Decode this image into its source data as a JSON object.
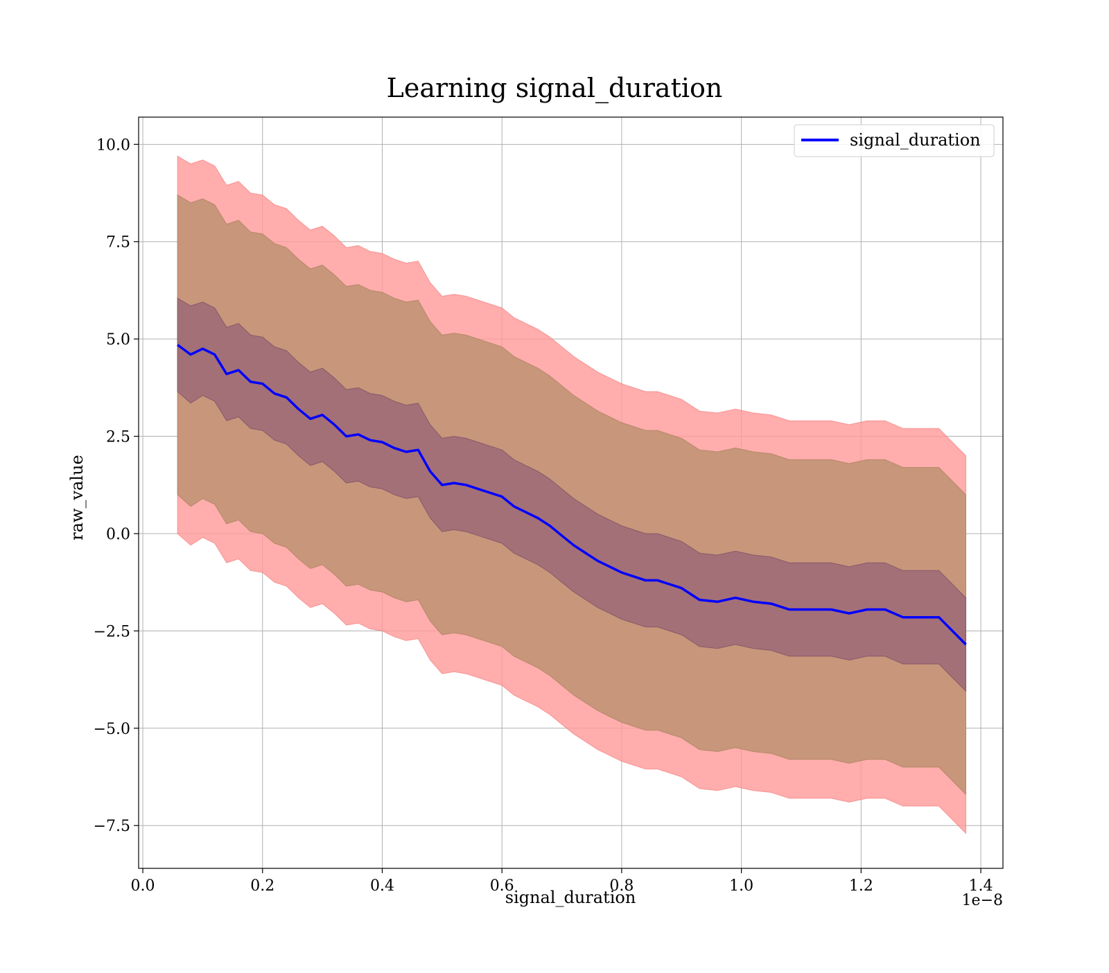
{
  "chart_data": {
    "type": "line",
    "title": "Learning signal_duration",
    "xlabel": "signal_duration",
    "ylabel": "raw_value",
    "x_offset_label": "1e−8",
    "xlim": [
      -0.007,
      1.437
    ],
    "ylim": [
      -8.6,
      10.7
    ],
    "x_ticks": [
      0.0,
      0.2,
      0.4,
      0.6,
      0.8,
      1.0,
      1.2,
      1.4
    ],
    "x_tick_labels": [
      "0.0",
      "0.2",
      "0.4",
      "0.6",
      "0.8",
      "1.0",
      "1.2",
      "1.4"
    ],
    "y_ticks": [
      -7.5,
      -5.0,
      -2.5,
      0.0,
      2.5,
      5.0,
      7.5,
      10.0
    ],
    "y_tick_labels": [
      "−7.5",
      "−5.0",
      "−2.5",
      "0.0",
      "2.5",
      "5.0",
      "7.5",
      "10.0"
    ],
    "grid": true,
    "legend_position": "top-right",
    "colors": {
      "line": "#0000ff",
      "outer_band": "#ff9999",
      "middle_band": "#c8967a",
      "inner_band": "#a37078",
      "grid": "#b0b0b0"
    },
    "x": [
      0.058,
      0.08,
      0.1,
      0.12,
      0.14,
      0.16,
      0.18,
      0.2,
      0.22,
      0.24,
      0.26,
      0.28,
      0.3,
      0.32,
      0.34,
      0.36,
      0.38,
      0.4,
      0.42,
      0.44,
      0.46,
      0.48,
      0.5,
      0.52,
      0.54,
      0.56,
      0.58,
      0.6,
      0.62,
      0.64,
      0.66,
      0.68,
      0.7,
      0.72,
      0.74,
      0.76,
      0.78,
      0.8,
      0.82,
      0.84,
      0.86,
      0.88,
      0.9,
      0.93,
      0.96,
      0.99,
      1.02,
      1.05,
      1.08,
      1.12,
      1.15,
      1.18,
      1.21,
      1.24,
      1.27,
      1.3,
      1.33,
      1.375
    ],
    "series": [
      {
        "name": "signal_duration",
        "values": [
          4.85,
          4.6,
          4.75,
          4.6,
          4.1,
          4.2,
          3.9,
          3.85,
          3.6,
          3.5,
          3.2,
          2.95,
          3.05,
          2.8,
          2.5,
          2.55,
          2.4,
          2.35,
          2.2,
          2.1,
          2.15,
          1.6,
          1.25,
          1.3,
          1.25,
          1.15,
          1.05,
          0.95,
          0.7,
          0.55,
          0.4,
          0.2,
          -0.05,
          -0.3,
          -0.5,
          -0.7,
          -0.85,
          -1.0,
          -1.1,
          -1.2,
          -1.2,
          -1.3,
          -1.4,
          -1.7,
          -1.75,
          -1.65,
          -1.75,
          -1.8,
          -1.95,
          -1.95,
          -1.95,
          -2.05,
          -1.95,
          -1.95,
          -2.15,
          -2.15,
          -2.15,
          -2.85
        ]
      }
    ],
    "bands": {
      "inner_upper": [
        6.05,
        5.85,
        5.95,
        5.8,
        5.3,
        5.4,
        5.1,
        5.05,
        4.8,
        4.7,
        4.4,
        4.15,
        4.25,
        4.0,
        3.7,
        3.75,
        3.6,
        3.55,
        3.4,
        3.3,
        3.35,
        2.8,
        2.45,
        2.5,
        2.45,
        2.35,
        2.25,
        2.15,
        1.9,
        1.75,
        1.6,
        1.4,
        1.15,
        0.9,
        0.7,
        0.5,
        0.35,
        0.2,
        0.1,
        0.0,
        -0.0,
        -0.1,
        -0.2,
        -0.5,
        -0.55,
        -0.45,
        -0.55,
        -0.6,
        -0.75,
        -0.75,
        -0.75,
        -0.85,
        -0.75,
        -0.75,
        -0.95,
        -0.95,
        -0.95,
        -1.65
      ],
      "inner_lower": [
        3.65,
        3.35,
        3.55,
        3.4,
        2.9,
        3.0,
        2.7,
        2.65,
        2.4,
        2.3,
        2.0,
        1.75,
        1.85,
        1.6,
        1.3,
        1.35,
        1.2,
        1.15,
        1.0,
        0.9,
        0.95,
        0.4,
        0.05,
        0.1,
        0.05,
        -0.05,
        -0.15,
        -0.25,
        -0.5,
        -0.65,
        -0.8,
        -1.0,
        -1.25,
        -1.5,
        -1.7,
        -1.9,
        -2.05,
        -2.2,
        -2.3,
        -2.4,
        -2.4,
        -2.5,
        -2.6,
        -2.9,
        -2.95,
        -2.85,
        -2.95,
        -3.0,
        -3.15,
        -3.15,
        -3.15,
        -3.25,
        -3.15,
        -3.15,
        -3.35,
        -3.35,
        -3.35,
        -4.05
      ],
      "middle_upper": [
        8.7,
        8.5,
        8.6,
        8.45,
        7.95,
        8.05,
        7.75,
        7.7,
        7.45,
        7.35,
        7.05,
        6.8,
        6.9,
        6.65,
        6.35,
        6.4,
        6.25,
        6.2,
        6.05,
        5.95,
        6.0,
        5.45,
        5.1,
        5.15,
        5.1,
        5.0,
        4.9,
        4.8,
        4.55,
        4.4,
        4.25,
        4.05,
        3.8,
        3.55,
        3.35,
        3.15,
        3.0,
        2.85,
        2.75,
        2.65,
        2.65,
        2.55,
        2.45,
        2.15,
        2.1,
        2.2,
        2.1,
        2.05,
        1.9,
        1.9,
        1.9,
        1.8,
        1.9,
        1.9,
        1.7,
        1.7,
        1.7,
        1.0
      ],
      "middle_lower": [
        1.0,
        0.7,
        0.9,
        0.75,
        0.25,
        0.35,
        0.05,
        0.0,
        -0.25,
        -0.35,
        -0.65,
        -0.9,
        -0.8,
        -1.05,
        -1.35,
        -1.3,
        -1.45,
        -1.5,
        -1.65,
        -1.75,
        -1.7,
        -2.25,
        -2.6,
        -2.55,
        -2.6,
        -2.7,
        -2.8,
        -2.9,
        -3.15,
        -3.3,
        -3.45,
        -3.65,
        -3.9,
        -4.15,
        -4.35,
        -4.55,
        -4.7,
        -4.85,
        -4.95,
        -5.05,
        -5.05,
        -5.15,
        -5.25,
        -5.55,
        -5.6,
        -5.5,
        -5.6,
        -5.65,
        -5.8,
        -5.8,
        -5.8,
        -5.9,
        -5.8,
        -5.8,
        -6.0,
        -6.0,
        -6.0,
        -6.7
      ],
      "outer_upper": [
        9.7,
        9.5,
        9.6,
        9.45,
        8.95,
        9.05,
        8.75,
        8.7,
        8.45,
        8.35,
        8.05,
        7.8,
        7.9,
        7.65,
        7.35,
        7.4,
        7.25,
        7.2,
        7.05,
        6.95,
        7.0,
        6.45,
        6.1,
        6.15,
        6.1,
        6.0,
        5.9,
        5.8,
        5.55,
        5.4,
        5.25,
        5.05,
        4.8,
        4.55,
        4.35,
        4.15,
        4.0,
        3.85,
        3.75,
        3.65,
        3.65,
        3.55,
        3.45,
        3.15,
        3.1,
        3.2,
        3.1,
        3.05,
        2.9,
        2.9,
        2.9,
        2.8,
        2.9,
        2.9,
        2.7,
        2.7,
        2.7,
        2.0
      ],
      "outer_lower": [
        0.0,
        -0.3,
        -0.1,
        -0.25,
        -0.75,
        -0.65,
        -0.95,
        -1.0,
        -1.25,
        -1.35,
        -1.65,
        -1.9,
        -1.8,
        -2.05,
        -2.35,
        -2.3,
        -2.45,
        -2.5,
        -2.65,
        -2.75,
        -2.7,
        -3.25,
        -3.6,
        -3.55,
        -3.6,
        -3.7,
        -3.8,
        -3.9,
        -4.15,
        -4.3,
        -4.45,
        -4.65,
        -4.9,
        -5.15,
        -5.35,
        -5.55,
        -5.7,
        -5.85,
        -5.95,
        -6.05,
        -6.05,
        -6.15,
        -6.25,
        -6.55,
        -6.6,
        -6.5,
        -6.6,
        -6.65,
        -6.8,
        -6.8,
        -6.8,
        -6.9,
        -6.8,
        -6.8,
        -7.0,
        -7.0,
        -7.0,
        -7.7
      ]
    }
  }
}
